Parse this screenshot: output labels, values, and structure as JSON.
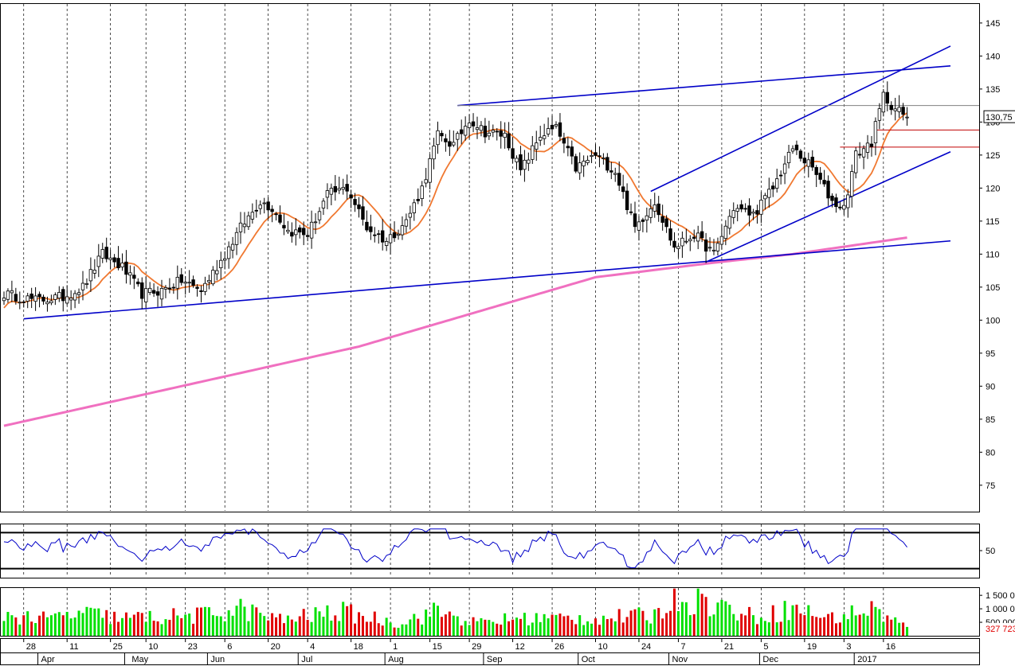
{
  "colors": {
    "background": "#ffffff",
    "up_candle": "#ffffff",
    "down_candle": "#000000",
    "sma_short": "#f07830",
    "sma_long": "#f070c0",
    "trendline": "#0000c8",
    "rsi_line": "#0000c8",
    "vol_up": "#00e000",
    "vol_down": "#e00000",
    "resistance_h": "#808080",
    "support_h": "#c00000"
  },
  "price_panel": {
    "last_price_label": "130,75",
    "last_price": 130.75,
    "y_ticks": [
      75,
      80,
      85,
      90,
      95,
      100,
      105,
      110,
      115,
      120,
      125,
      130,
      135,
      140,
      145
    ],
    "ylim": [
      71,
      148
    ]
  },
  "rsi_panel": {
    "tick_label": "50",
    "levels": [
      70,
      30
    ],
    "ylim": [
      20,
      80
    ]
  },
  "volume_panel": {
    "tick_labels": [
      "1 500 0",
      "1 000 0",
      "500 000"
    ],
    "last_volume_label": "327 723",
    "ylim": [
      0,
      1800000
    ]
  },
  "x_axis": {
    "day_labels": [
      "28",
      "11",
      "25",
      "10",
      "23",
      "6",
      "20",
      "4",
      "18",
      "1",
      "15",
      "29",
      "12",
      "26",
      "10",
      "24",
      "7",
      "21",
      "5",
      "19",
      "3",
      "16"
    ],
    "month_labels": [
      "Apr",
      "May",
      "Jun",
      "Jul",
      "Aug",
      "Sep",
      "Oct",
      "Nov",
      "Dec",
      "2017"
    ]
  },
  "chart_data": {
    "type": "candlestick",
    "period": "daily, late March 2016 to late January 2017",
    "price_anchors": [
      [
        0,
        104
      ],
      [
        8,
        103
      ],
      [
        15,
        103.5
      ],
      [
        20,
        105
      ],
      [
        25,
        110
      ],
      [
        30,
        108
      ],
      [
        35,
        104
      ],
      [
        40,
        104.5
      ],
      [
        45,
        106
      ],
      [
        50,
        104.5
      ],
      [
        55,
        109
      ],
      [
        60,
        114
      ],
      [
        65,
        118
      ],
      [
        68,
        117
      ],
      [
        72,
        113.5
      ],
      [
        77,
        113
      ],
      [
        82,
        119
      ],
      [
        87,
        120
      ],
      [
        92,
        114
      ],
      [
        97,
        112
      ],
      [
        102,
        115
      ],
      [
        106,
        120
      ],
      [
        110,
        128
      ],
      [
        114,
        126.5
      ],
      [
        118,
        130.5
      ],
      [
        122,
        128.5
      ],
      [
        127,
        128
      ],
      [
        131,
        122.5
      ],
      [
        136,
        128
      ],
      [
        140,
        129
      ],
      [
        145,
        123
      ],
      [
        150,
        125
      ],
      [
        155,
        122.5
      ],
      [
        160,
        114
      ],
      [
        165,
        118
      ],
      [
        170,
        111
      ],
      [
        175,
        113
      ],
      [
        180,
        110
      ],
      [
        185,
        117
      ],
      [
        190,
        116
      ],
      [
        195,
        120
      ],
      [
        200,
        126
      ],
      [
        205,
        123
      ],
      [
        210,
        118
      ],
      [
        213,
        117
      ],
      [
        216,
        125
      ],
      [
        220,
        127
      ],
      [
        223,
        134
      ],
      [
        226,
        132
      ],
      [
        229,
        130.75
      ]
    ],
    "volume_anchors": [
      [
        0,
        800000
      ],
      [
        10,
        620000
      ],
      [
        20,
        830000
      ],
      [
        30,
        650000
      ],
      [
        50,
        750000
      ],
      [
        60,
        1000000
      ],
      [
        70,
        580000
      ],
      [
        85,
        900000
      ],
      [
        100,
        480000
      ],
      [
        110,
        920000
      ],
      [
        120,
        460000
      ],
      [
        130,
        650000
      ],
      [
        150,
        650000
      ],
      [
        165,
        750000
      ],
      [
        170,
        1500000
      ],
      [
        180,
        1200000
      ],
      [
        190,
        700000
      ],
      [
        200,
        1000000
      ],
      [
        210,
        650000
      ],
      [
        220,
        1000000
      ],
      [
        229,
        327723
      ]
    ],
    "series": [
      {
        "name": "",
        "kind": "sma_short",
        "color": "#f07830"
      },
      {
        "name": "",
        "kind": "sma_long",
        "color": "#f070c0",
        "points": [
          [
            0,
            84
          ],
          [
            90,
            96
          ],
          [
            150,
            106.5
          ],
          [
            180,
            108.7
          ],
          [
            200,
            110
          ],
          [
            229,
            112.5
          ]
        ]
      },
      {
        "name": "",
        "kind": "rsi",
        "color": "#0000c8"
      }
    ],
    "trendlines": [
      {
        "from": [
          5,
          100.2
        ],
        "to": [
          240,
          112
        ]
      },
      {
        "from": [
          115,
          132.5
        ],
        "to": [
          240,
          138.5
        ]
      },
      {
        "from": [
          164,
          119.5
        ],
        "to": [
          240,
          141.5
        ]
      },
      {
        "from": [
          178,
          108.8
        ],
        "to": [
          240,
          125.5
        ]
      }
    ],
    "horizontal_lines": [
      {
        "from_index": 115,
        "price": 132.5,
        "color": "#808080"
      },
      {
        "from_index": 221,
        "price": 128.8,
        "color": "#c00000"
      },
      {
        "from_index": 212,
        "price": 126.2,
        "color": "#c00000"
      }
    ]
  }
}
